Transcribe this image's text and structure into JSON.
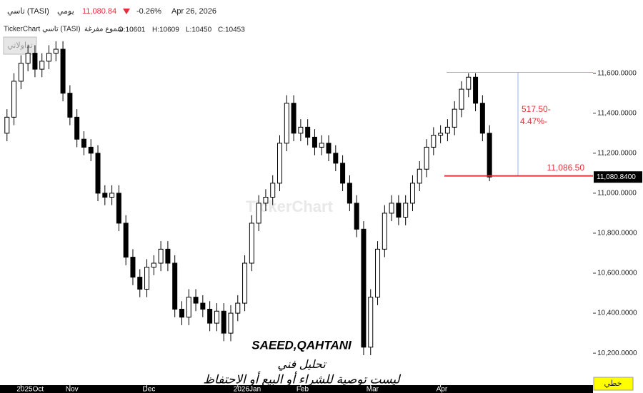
{
  "header": {
    "symbol": "تاسي (TASI)",
    "period": "يومي",
    "price": "11,080.84",
    "change": "-0.26%",
    "date": "Apr 26, 2026",
    "chart_name": "TickerChart تاسي (TASI)",
    "style": "شموع مفرغة",
    "ohlc": [
      "O:10601",
      "H:10609",
      "L:10450",
      "C:10453"
    ],
    "badge": "تداولاتي",
    "watermark": "TickerChart"
  },
  "chart_data": {
    "type": "candlestick",
    "open": [
      11300,
      11380,
      11560,
      11650,
      11700,
      11620,
      11660,
      11700,
      11720,
      11500,
      11380,
      11270,
      11230,
      11200,
      11000,
      10980,
      11000,
      10850,
      10680,
      10580,
      10520,
      10630,
      10650,
      10720,
      10650,
      10420,
      10380,
      10480,
      10450,
      10420,
      10350,
      10410,
      10300,
      10400,
      10450,
      10650,
      10850,
      10950,
      10980,
      11050,
      11250,
      11450,
      11300,
      11330,
      11280,
      11230,
      11250,
      11200,
      11150,
      11050,
      10950,
      10820,
      10230,
      10480,
      10720,
      10900,
      10950,
      10880,
      10950,
      11050,
      11120,
      11230,
      11290,
      11300,
      11330,
      11420,
      11520,
      11580,
      11450,
      11300
    ],
    "high": [
      11420,
      11600,
      11690,
      11740,
      11740,
      11700,
      11740,
      11760,
      11760,
      11540,
      11420,
      11310,
      11270,
      11240,
      11040,
      11040,
      11040,
      10890,
      10720,
      10620,
      10670,
      10690,
      10760,
      10760,
      10690,
      10460,
      10520,
      10520,
      10490,
      10460,
      10450,
      10450,
      10440,
      10490,
      10690,
      10890,
      10990,
      11020,
      11090,
      11290,
      11490,
      11490,
      11370,
      11370,
      11320,
      11290,
      11290,
      11240,
      11190,
      11090,
      10990,
      10860,
      10520,
      10760,
      10940,
      10990,
      10990,
      10990,
      11090,
      11160,
      11270,
      11330,
      11340,
      11370,
      11460,
      11560,
      11600,
      11600,
      11490,
      11340
    ],
    "low": [
      11260,
      11340,
      11520,
      11610,
      11580,
      11580,
      11620,
      11660,
      11460,
      11340,
      11230,
      11190,
      11160,
      10960,
      10940,
      10940,
      10810,
      10640,
      10540,
      10480,
      10480,
      10590,
      10610,
      10610,
      10380,
      10340,
      10340,
      10410,
      10380,
      10310,
      10310,
      10260,
      10260,
      10360,
      10410,
      10610,
      10810,
      10910,
      10940,
      11010,
      11210,
      11260,
      11260,
      11240,
      11190,
      11190,
      11160,
      11110,
      11010,
      10910,
      10780,
      10190,
      10190,
      10440,
      10680,
      10860,
      10840,
      10840,
      10910,
      11010,
      11080,
      11190,
      11250,
      11260,
      11290,
      11380,
      11480,
      11410,
      11260,
      11060
    ],
    "close": [
      11380,
      11560,
      11650,
      11700,
      11620,
      11660,
      11700,
      11720,
      11500,
      11380,
      11270,
      11230,
      11200,
      11000,
      10980,
      11000,
      10850,
      10680,
      10580,
      10520,
      10630,
      10650,
      10720,
      10650,
      10420,
      10380,
      10480,
      10450,
      10420,
      10350,
      10410,
      10300,
      10400,
      10450,
      10650,
      10850,
      10950,
      10980,
      11050,
      11250,
      11450,
      11300,
      11330,
      11280,
      11230,
      11250,
      11200,
      11150,
      11050,
      10950,
      10820,
      10230,
      10480,
      10720,
      10900,
      10950,
      10880,
      10950,
      11050,
      11120,
      11230,
      11290,
      11300,
      11330,
      11420,
      11520,
      11580,
      11450,
      11300,
      11081
    ],
    "xlim": [
      -1,
      83.8
    ],
    "xticks": [
      {
        "value": 2,
        "label": "2025Oct"
      },
      {
        "value": 9,
        "label": "Nov"
      },
      {
        "value": 20,
        "label": "Dec"
      },
      {
        "value": 33,
        "label": "2026Jan"
      },
      {
        "value": 42,
        "label": "Feb"
      },
      {
        "value": 52,
        "label": "Mar"
      },
      {
        "value": 62,
        "label": "Apr"
      }
    ],
    "ylim": [
      10040,
      11770
    ],
    "yticks": [
      {
        "value": 10200,
        "label": "10,200.0000"
      },
      {
        "value": 10400,
        "label": "10,400.0000"
      },
      {
        "value": 10600,
        "label": "10,600.0000"
      },
      {
        "value": 10800,
        "label": "10,800.0000"
      },
      {
        "value": 11000,
        "label": "11,000.0000"
      },
      {
        "value": 11200,
        "label": "11,200.0000"
      },
      {
        "value": 11400,
        "label": "11,400.0000"
      },
      {
        "value": 11600,
        "label": "11,600.0000"
      }
    ],
    "up_color": "#ffffff",
    "down_color": "#000000",
    "last_price": {
      "value": 11080.84,
      "label": "11,080.8400"
    },
    "measure": {
      "level": {
        "value": 11086.5,
        "label": "11,086.50"
      },
      "change": {
        "value": -517.5,
        "label": "517.50-"
      },
      "percent": "4.47%-"
    },
    "annotations": [
      "SAEED,QAHTANI",
      "تحليل فني",
      "ليست توصية للشراء أو البيع أو الاحتفاظ"
    ]
  },
  "footer": {
    "mode": "خطي"
  }
}
